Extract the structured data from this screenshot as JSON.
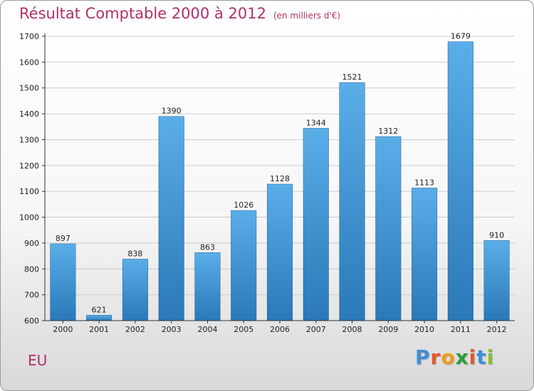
{
  "chart_data": {
    "type": "bar",
    "title": "Résultat Comptable 2000 à 2012",
    "subtitle": "(en milliers d'€)",
    "categories": [
      "2000",
      "2001",
      "2002",
      "2003",
      "2004",
      "2005",
      "2006",
      "2007",
      "2008",
      "2009",
      "2010",
      "2011",
      "2012"
    ],
    "values": [
      897,
      621,
      838,
      1390,
      863,
      1026,
      1128,
      1344,
      1521,
      1312,
      1113,
      1679,
      910
    ],
    "ylim": [
      600,
      1700
    ],
    "yticks": [
      600,
      700,
      800,
      900,
      1000,
      1100,
      1200,
      1300,
      1400,
      1500,
      1600,
      1700
    ],
    "xlabel": "",
    "ylabel": "",
    "grid": true,
    "bar_color_top": "#5aaee8",
    "bar_color_bottom": "#2a78b8"
  },
  "location": "EU",
  "brand": {
    "letters": [
      "P",
      "r",
      "o",
      "x",
      "i",
      "t",
      "i"
    ],
    "colors": [
      "#3d8fd6",
      "#e8562a",
      "#f29a1d",
      "#2a9d3a",
      "#e8562a",
      "#3d8fd6",
      "#8bbf2a"
    ]
  },
  "colors": {
    "accent": "#b0306a",
    "axis": "#333333",
    "grid": "#cccccc"
  }
}
